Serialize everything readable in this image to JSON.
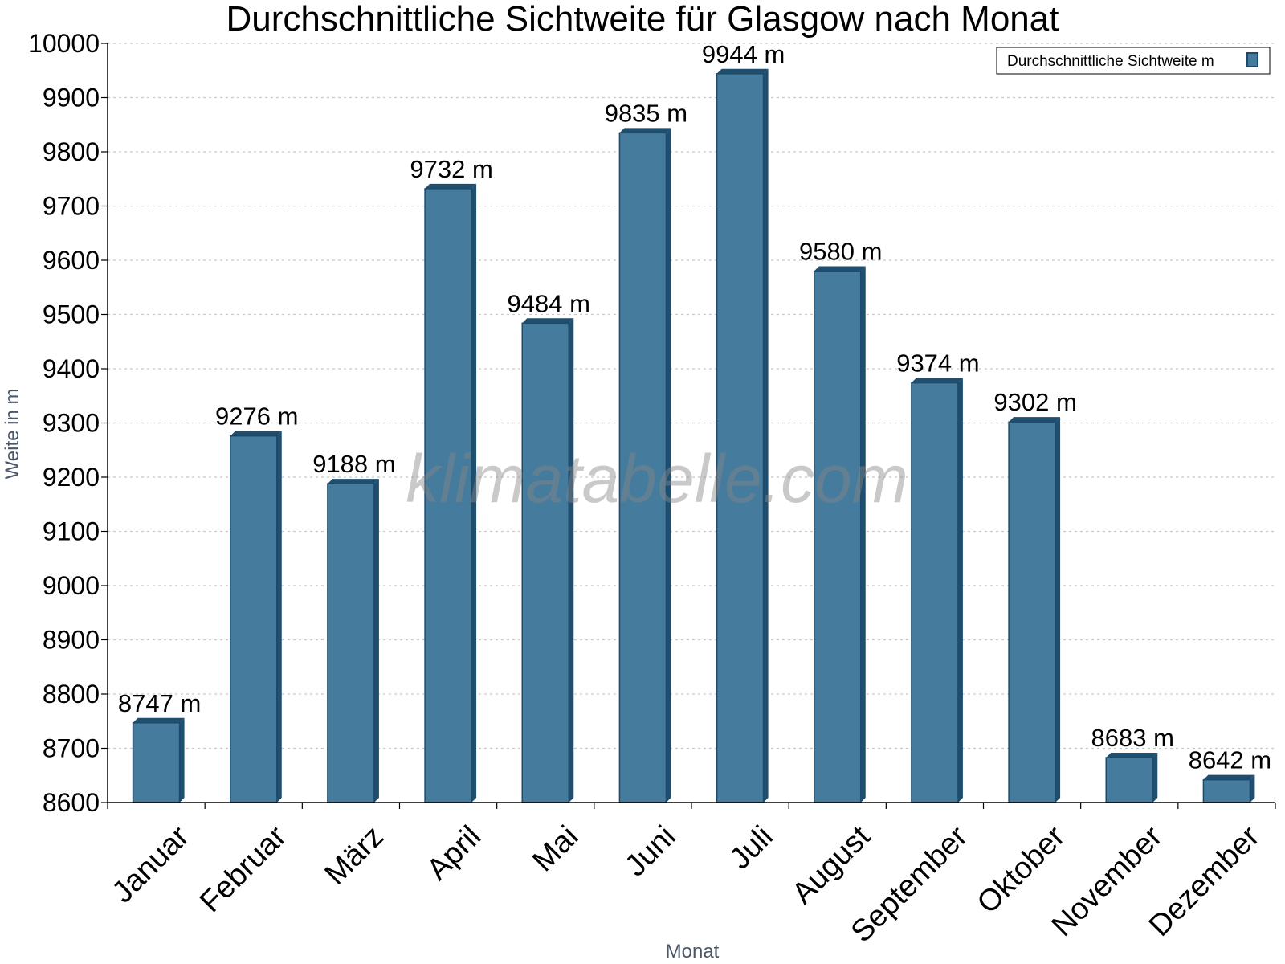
{
  "chart_data": {
    "type": "bar",
    "title": "Durchschnittliche Sichtweite für Glasgow nach Monat",
    "xlabel": "Monat",
    "ylabel": "Weite in m",
    "categories": [
      "Januar",
      "Februar",
      "März",
      "April",
      "Mai",
      "Juni",
      "Juli",
      "August",
      "September",
      "Oktober",
      "November",
      "Dezember"
    ],
    "series": [
      {
        "name": "Durchschnittliche Sichtweite m",
        "values": [
          8747,
          9276,
          9188,
          9732,
          9484,
          9835,
          9944,
          9580,
          9374,
          9302,
          8683,
          8642
        ],
        "labels": [
          "8747 m",
          "9276 m",
          "9188 m",
          "9732 m",
          "9484 m",
          "9835 m",
          "9944 m",
          "9580 m",
          "9374 m",
          "9302 m",
          "8683 m",
          "8642 m"
        ]
      }
    ],
    "ylim": [
      8600,
      10000
    ],
    "yticks": [
      8600,
      8700,
      8800,
      8900,
      9000,
      9100,
      9200,
      9300,
      9400,
      9500,
      9600,
      9700,
      9800,
      9900,
      10000
    ],
    "grid": true,
    "legend_position": "top-right",
    "colors": {
      "bar": "#457b9d",
      "bar_side": "#1f4e6e",
      "bar_edge": "#1d4a6a",
      "grid": "#c8c8c8",
      "axis": "#000000"
    }
  },
  "watermark": "klimatabelle.com"
}
